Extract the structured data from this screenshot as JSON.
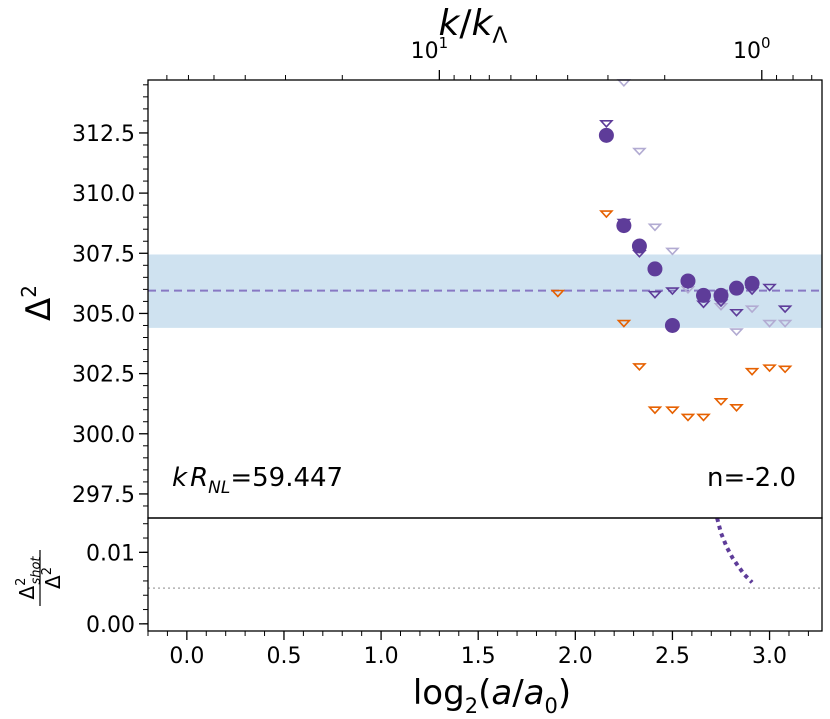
{
  "chart_data": [
    {
      "type": "scatter",
      "panel": "main",
      "xlabel_base": "log",
      "xlabel_sub": "2",
      "xlabel_rest_open": "(",
      "xlabel_a": "a",
      "xlabel_slash": "/",
      "xlabel_a0": "a",
      "xlabel_a0_sub": "0",
      "xlabel_close": ")",
      "ylabel": "Δ",
      "ylabel_sup": "2",
      "top_axis_label_k": "k",
      "top_axis_label_slash": "/",
      "top_axis_label_k2": "k",
      "top_axis_label_sub": "Λ",
      "top_ticks": [
        {
          "base": "10",
          "exp": "1",
          "x": 1.3
        },
        {
          "base": "10",
          "exp": "0",
          "x": 2.96
        }
      ],
      "xlim": [
        -0.2,
        3.27
      ],
      "ylim": [
        296.5,
        314.7
      ],
      "x_ticks": [
        0.0,
        0.5,
        1.0,
        1.5,
        2.0,
        2.5,
        3.0
      ],
      "x_tick_labels": [
        "0.0",
        "0.5",
        "1.0",
        "1.5",
        "2.0",
        "2.5",
        "3.0"
      ],
      "y_ticks": [
        297.5,
        300.0,
        302.5,
        305.0,
        307.5,
        310.0,
        312.5
      ],
      "y_tick_labels": [
        "297.5",
        "300.0",
        "302.5",
        "305.0",
        "307.5",
        "310.0",
        "312.5"
      ],
      "band": {
        "low": 304.4,
        "high": 307.45,
        "color": "#cfe2f0"
      },
      "hline": {
        "y": 305.95,
        "color": "#8878c3"
      },
      "annotation_left_k": "k",
      "annotation_left_R": "R",
      "annotation_left_sub": "NL",
      "annotation_left_value": "=59.447",
      "annotation_right": "n=-2.0",
      "colors": {
        "filled": "#5e3c99",
        "dark_tri": "#5e3c99",
        "light_tri": "#b2abd2",
        "orange_tri": "#e66101"
      },
      "series": [
        {
          "name": "filled-circles",
          "marker": "circle",
          "x": [
            2.16,
            2.25,
            2.33,
            2.41,
            2.5,
            2.58,
            2.66,
            2.75,
            2.83,
            2.91
          ],
          "y": [
            312.4,
            308.65,
            307.8,
            306.85,
            304.5,
            306.35,
            305.75,
            305.75,
            306.05,
            306.25
          ]
        },
        {
          "name": "dark-triangles",
          "marker": "triangle-down",
          "x": [
            2.16,
            2.25,
            2.33,
            2.41,
            2.5,
            2.58,
            2.66,
            2.75,
            2.83,
            2.91,
            3.0,
            3.08
          ],
          "y": [
            312.9,
            308.8,
            307.5,
            305.8,
            305.95,
            306.2,
            305.4,
            305.45,
            305.05,
            305.95,
            306.1,
            305.2
          ]
        },
        {
          "name": "light-triangles",
          "marker": "triangle-down",
          "x": [
            2.25,
            2.33,
            2.41,
            2.5,
            2.58,
            2.66,
            2.75,
            2.83,
            2.91,
            3.0,
            3.08
          ],
          "y": [
            314.6,
            311.75,
            308.6,
            307.6,
            306.0,
            305.4,
            305.3,
            304.25,
            305.2,
            304.6,
            304.6
          ]
        },
        {
          "name": "orange-triangles",
          "marker": "triangle-down",
          "x": [
            1.91,
            2.16,
            2.25,
            2.33,
            2.41,
            2.5,
            2.58,
            2.66,
            2.75,
            2.83,
            2.91,
            3.0,
            3.08
          ],
          "y": [
            305.85,
            309.15,
            304.6,
            302.8,
            301.0,
            301.0,
            300.7,
            300.7,
            301.35,
            301.1,
            302.6,
            302.75,
            302.7
          ]
        }
      ]
    },
    {
      "type": "line",
      "panel": "ratio",
      "ylabel_num": "Δ",
      "ylabel_num_sup": "2",
      "ylabel_num_sub": "shot",
      "ylabel_den": "Δ",
      "ylabel_den_sup": "2",
      "ylim": [
        -0.001,
        0.0148
      ],
      "y_ticks": [
        0.0,
        0.01
      ],
      "y_tick_labels": [
        "0.00",
        "0.01"
      ],
      "hline": {
        "y": 0.005,
        "color": "#b0b0b0"
      },
      "series": [
        {
          "name": "shot-ratio",
          "color": "#5e3c99",
          "x": [
            2.73,
            2.75,
            2.78,
            2.81,
            2.84,
            2.87,
            2.91
          ],
          "y": [
            0.0148,
            0.0127,
            0.0107,
            0.0092,
            0.008,
            0.0069,
            0.0058
          ]
        }
      ]
    }
  ]
}
